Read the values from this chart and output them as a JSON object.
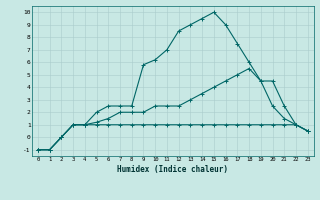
{
  "bg_color": "#c8e8e4",
  "line_color": "#006666",
  "xlim": [
    -0.5,
    23.5
  ],
  "ylim": [
    -1.5,
    10.5
  ],
  "xticks": [
    0,
    1,
    2,
    3,
    4,
    5,
    6,
    7,
    8,
    9,
    10,
    11,
    12,
    13,
    14,
    15,
    16,
    17,
    18,
    19,
    20,
    21,
    22,
    23
  ],
  "yticks": [
    -1,
    0,
    1,
    2,
    3,
    4,
    5,
    6,
    7,
    8,
    9,
    10
  ],
  "xlabel": "Humidex (Indice chaleur)",
  "line1_x": [
    0,
    1,
    2,
    3,
    4,
    5,
    6,
    7,
    8,
    9,
    10,
    11,
    12,
    13,
    14,
    15,
    16,
    17,
    18,
    19,
    20,
    21,
    22,
    23
  ],
  "line1_y": [
    -1,
    -1,
    0,
    1,
    1,
    2,
    2.5,
    2.5,
    2.5,
    5.8,
    6.2,
    7,
    8.5,
    9.0,
    9.5,
    10,
    9.0,
    7.5,
    6.0,
    4.5,
    2.5,
    1.5,
    1.0,
    0.5
  ],
  "line2_x": [
    0,
    1,
    2,
    3,
    4,
    5,
    6,
    7,
    8,
    9,
    10,
    11,
    12,
    13,
    14,
    15,
    16,
    17,
    18,
    19,
    20,
    21,
    22,
    23
  ],
  "line2_y": [
    -1,
    -1,
    0,
    1,
    1,
    1.2,
    1.5,
    2.0,
    2.0,
    2.0,
    2.5,
    2.5,
    2.5,
    3.0,
    3.5,
    4.0,
    4.5,
    5.0,
    5.5,
    4.5,
    4.5,
    2.5,
    1.0,
    0.5
  ],
  "line3_x": [
    0,
    1,
    2,
    3,
    4,
    5,
    6,
    7,
    8,
    9,
    10,
    11,
    12,
    13,
    14,
    15,
    16,
    17,
    18,
    19,
    20,
    21,
    22,
    23
  ],
  "line3_y": [
    -1,
    -1,
    0,
    1,
    1,
    1,
    1,
    1,
    1,
    1,
    1,
    1,
    1,
    1,
    1,
    1,
    1,
    1,
    1,
    1,
    1,
    1,
    1,
    0.5
  ]
}
